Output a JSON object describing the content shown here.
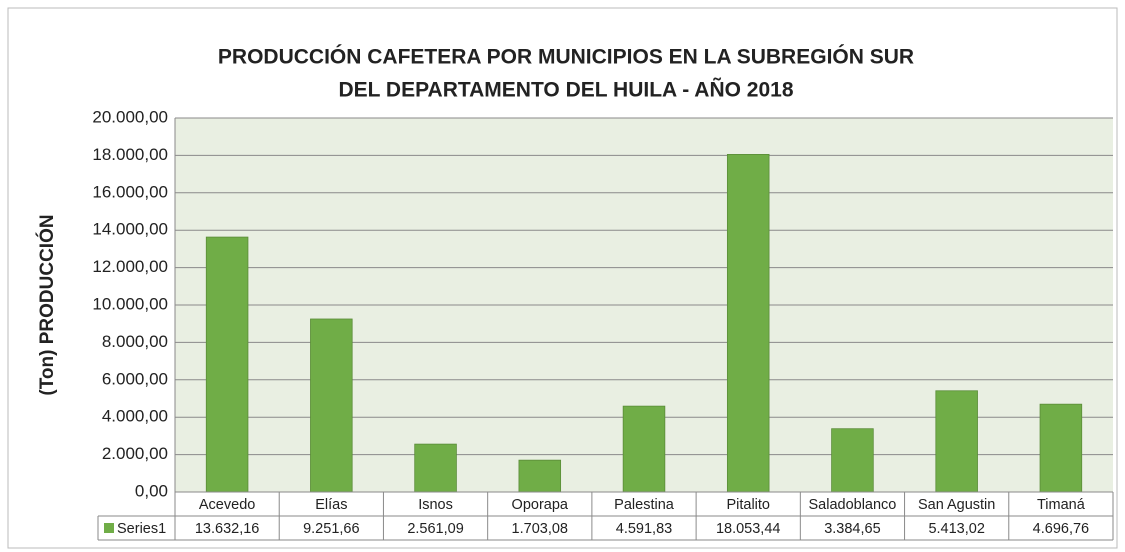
{
  "chart_data": {
    "type": "bar",
    "title": [
      "PRODUCCIÓN CAFETERA POR MUNICIPIOS EN LA SUBREGIÓN SUR",
      "DEL DEPARTAMENTO DEL HUILA - AÑO 2018"
    ],
    "y_label": "(Ton) PRODUCCIÓN",
    "categories": [
      "Acevedo",
      "Elías",
      "Isnos",
      "Oporapa",
      "Palestina",
      "Pitalito",
      "Saladoblanco",
      "San Agustin",
      "Timaná"
    ],
    "series": [
      {
        "name": "Series1",
        "color": "#70ad47",
        "values": [
          13632.16,
          9251.66,
          2561.09,
          1703.08,
          4591.83,
          18053.44,
          3384.65,
          5413.02,
          4696.76
        ],
        "value_labels": [
          "13.632,16",
          "9.251,66",
          "2.561,09",
          "1.703,08",
          "4.591,83",
          "18.053,44",
          "3.384,65",
          "5.413,02",
          "4.696,76"
        ]
      }
    ],
    "ylim": [
      0,
      20000
    ],
    "yticks": [
      {
        "value": 0,
        "label": "0,00"
      },
      {
        "value": 2000,
        "label": "2.000,00"
      },
      {
        "value": 4000,
        "label": "4.000,00"
      },
      {
        "value": 6000,
        "label": "6.000,00"
      },
      {
        "value": 8000,
        "label": "8.000,00"
      },
      {
        "value": 10000,
        "label": "10.000,00"
      },
      {
        "value": 12000,
        "label": "12.000,00"
      },
      {
        "value": 14000,
        "label": "14.000,00"
      },
      {
        "value": 16000,
        "label": "16.000,00"
      },
      {
        "value": 18000,
        "label": "18.000,00"
      },
      {
        "value": 20000,
        "label": "20.000,00"
      }
    ],
    "grid": true,
    "data_table": true
  }
}
